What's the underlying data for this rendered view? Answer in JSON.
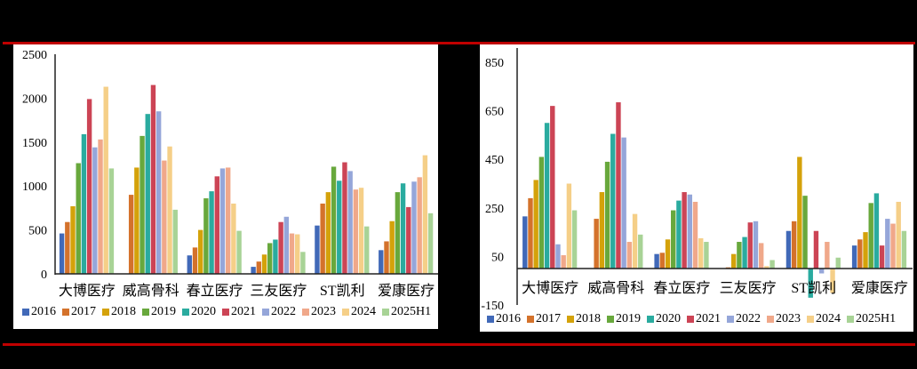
{
  "colors": {
    "2016": "#4169b8",
    "2017": "#d4722b",
    "2018": "#d4a20a",
    "2019": "#68a83c",
    "2020": "#2aab9f",
    "2021": "#cc4455",
    "2022": "#95a6d9",
    "2023": "#f0a88a",
    "2024": "#f5cf88",
    "2025H1": "#a8d396"
  },
  "legend": [
    "2016",
    "2017",
    "2018",
    "2019",
    "2020",
    "2021",
    "2022",
    "2023",
    "2024",
    "2025H1"
  ],
  "chart_data": [
    {
      "type": "bar",
      "title": "",
      "xlabel": "",
      "ylabel": "",
      "ylim": [
        0,
        2500
      ],
      "yticks": [
        0,
        500,
        1000,
        1500,
        2000,
        2500
      ],
      "grid": false,
      "legend_position": "bottom",
      "categories": [
        "大博医疗",
        "威高骨科",
        "春立医疗",
        "三友医疗",
        "ST凯利",
        "爱康医疗"
      ],
      "series": [
        {
          "name": "2016",
          "values": [
            460,
            null,
            210,
            80,
            550,
            270
          ]
        },
        {
          "name": "2017",
          "values": [
            590,
            900,
            300,
            140,
            800,
            370
          ]
        },
        {
          "name": "2018",
          "values": [
            770,
            1210,
            500,
            220,
            930,
            600
          ]
        },
        {
          "name": "2019",
          "values": [
            1260,
            1570,
            860,
            350,
            1220,
            930
          ]
        },
        {
          "name": "2020",
          "values": [
            1590,
            1820,
            940,
            390,
            1060,
            1030
          ]
        },
        {
          "name": "2021",
          "values": [
            1990,
            2150,
            1110,
            590,
            1270,
            760
          ]
        },
        {
          "name": "2022",
          "values": [
            1440,
            1850,
            1200,
            650,
            1170,
            1050
          ]
        },
        {
          "name": "2023",
          "values": [
            1530,
            1290,
            1210,
            460,
            960,
            1100
          ]
        },
        {
          "name": "2024",
          "values": [
            2130,
            1450,
            800,
            450,
            980,
            1350
          ]
        },
        {
          "name": "2025H1",
          "values": [
            1200,
            730,
            490,
            250,
            540,
            690
          ]
        }
      ]
    },
    {
      "type": "bar",
      "title": "",
      "xlabel": "",
      "ylabel": "",
      "ylim": [
        -150,
        850
      ],
      "yticks": [
        -150,
        50,
        250,
        450,
        650,
        850
      ],
      "grid": false,
      "legend_position": "bottom",
      "categories": [
        "大博医疗",
        "威高骨科",
        "春立医疗",
        "三友医疗",
        "ST凯利",
        "爱康医疗"
      ],
      "series": [
        {
          "name": "2016",
          "values": [
            215,
            null,
            60,
            2,
            155,
            95
          ]
        },
        {
          "name": "2017",
          "values": [
            290,
            205,
            65,
            5,
            195,
            120
          ]
        },
        {
          "name": "2018",
          "values": [
            365,
            315,
            120,
            60,
            460,
            150
          ]
        },
        {
          "name": "2019",
          "values": [
            460,
            440,
            240,
            110,
            300,
            270
          ]
        },
        {
          "name": "2020",
          "values": [
            600,
            555,
            280,
            130,
            -120,
            310
          ]
        },
        {
          "name": "2021",
          "values": [
            670,
            685,
            315,
            190,
            155,
            95
          ]
        },
        {
          "name": "2022",
          "values": [
            100,
            540,
            305,
            195,
            -20,
            205
          ]
        },
        {
          "name": "2023",
          "values": [
            55,
            110,
            275,
            105,
            110,
            185
          ]
        },
        {
          "name": "2024",
          "values": [
            350,
            225,
            125,
            10,
            -100,
            275
          ]
        },
        {
          "name": "2025H1",
          "values": [
            240,
            140,
            110,
            35,
            45,
            155
          ]
        }
      ]
    }
  ]
}
